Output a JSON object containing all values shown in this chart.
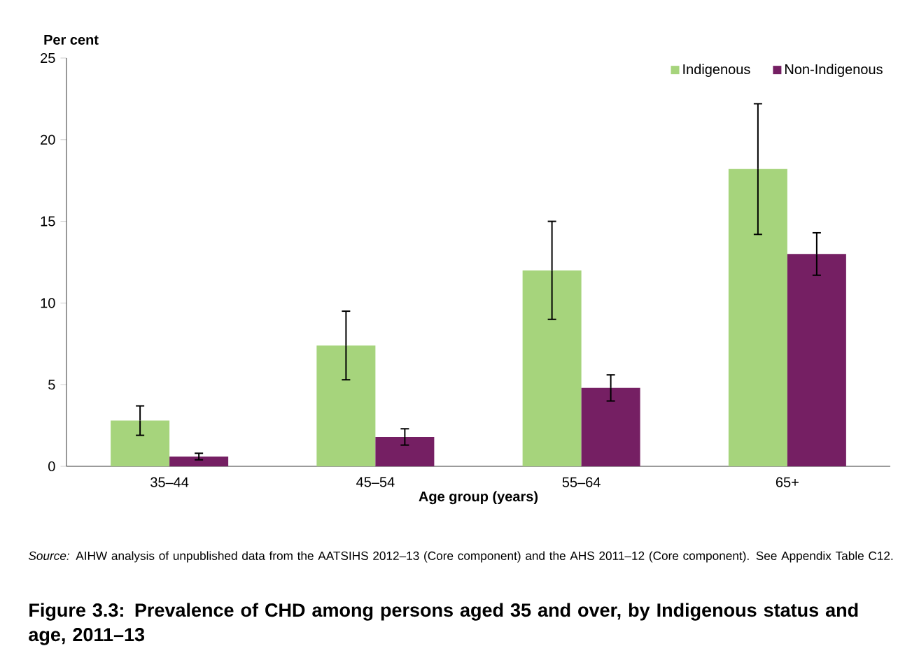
{
  "chart_data": {
    "type": "bar",
    "title": "Figure 3.3: Prevalence of CHD among persons aged 35 and over, by Indigenous status and age, 2011–13",
    "xlabel": "Age group (years)",
    "ylabel": "Per cent",
    "categories": [
      "35–44",
      "45–54",
      "55–64",
      "65+"
    ],
    "series": [
      {
        "name": "Indigenous",
        "color": "#a6d47c",
        "values": [
          2.8,
          7.4,
          12.0,
          18.2
        ],
        "errors": [
          [
            1.9,
            3.7
          ],
          [
            5.3,
            9.5
          ],
          [
            9.0,
            15.0
          ],
          [
            14.2,
            22.2
          ]
        ]
      },
      {
        "name": "Non-Indigenous",
        "color": "#751f63",
        "values": [
          0.6,
          1.8,
          4.8,
          13.0
        ],
        "errors": [
          [
            0.4,
            0.8
          ],
          [
            1.3,
            2.3
          ],
          [
            4.0,
            5.6
          ],
          [
            11.7,
            14.3
          ]
        ]
      }
    ],
    "ylim": [
      0,
      25
    ],
    "yticks": [
      0,
      5,
      10,
      15,
      20,
      25
    ],
    "grid": false,
    "legend": "top right",
    "annotations": [
      "*Source:* AIHW analysis of unpublished data from the AATSIHS 2012–13 (Core component) and the AHS 2011–12 (Core component). See Appendix Table C12."
    ]
  }
}
